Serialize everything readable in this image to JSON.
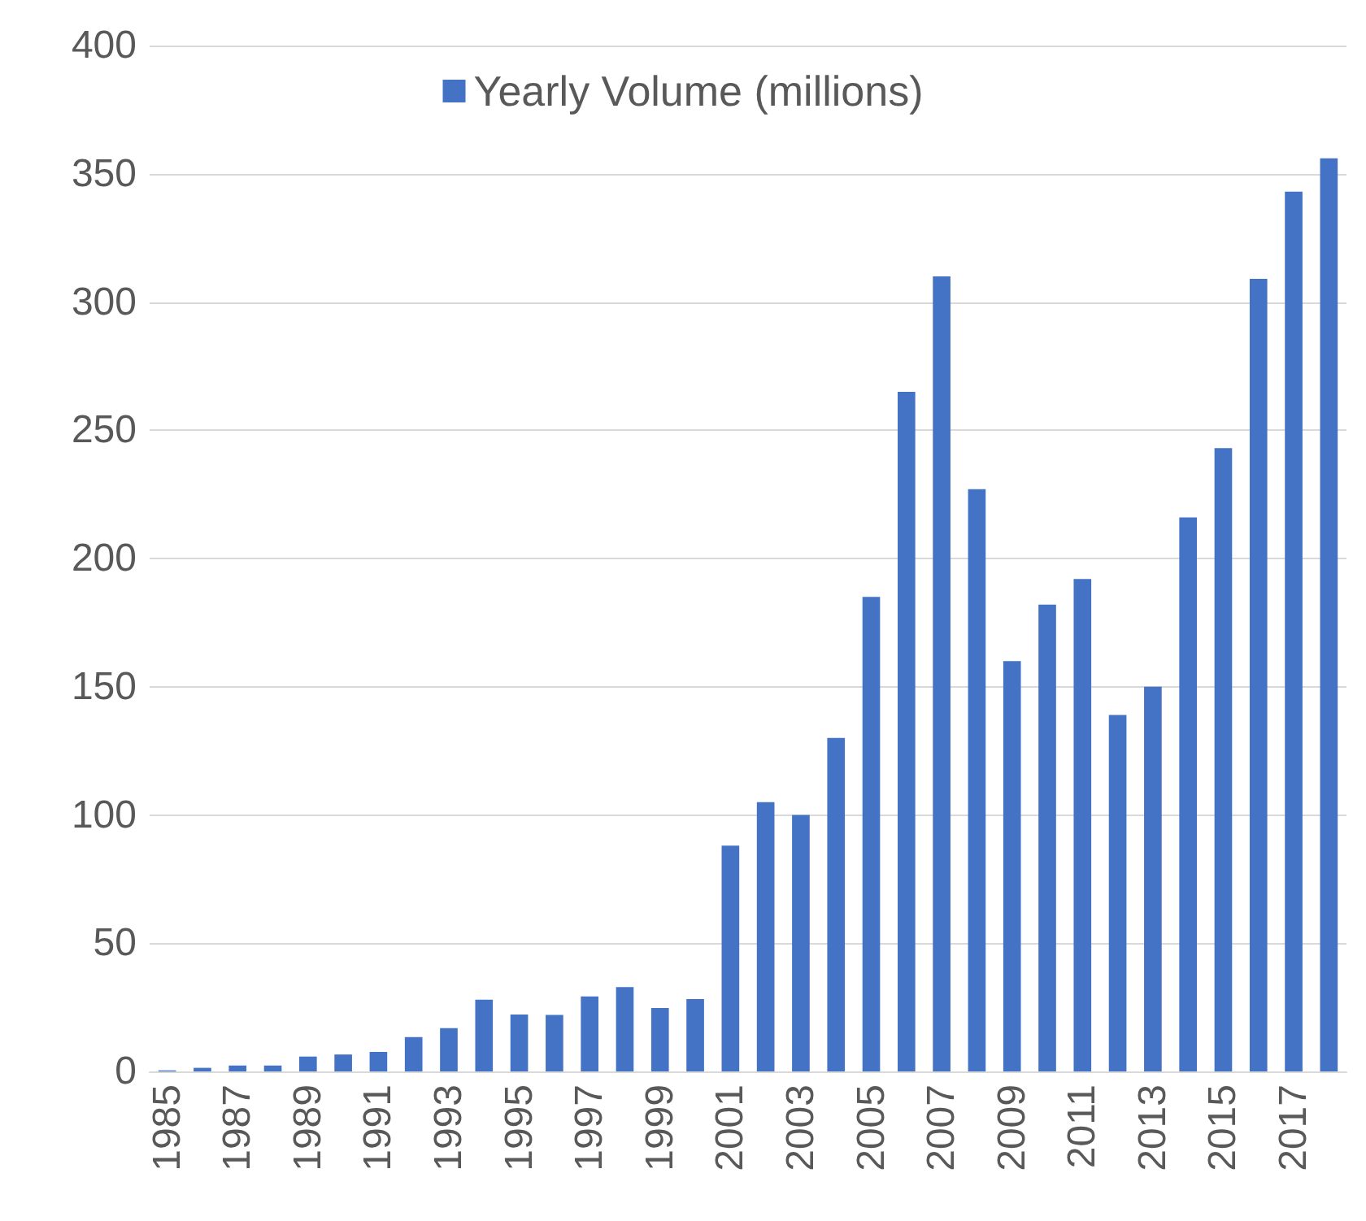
{
  "chart_data": {
    "type": "bar",
    "categories": [
      "1985",
      null,
      "1987",
      null,
      "1989",
      null,
      "1991",
      null,
      "1993",
      null,
      "1995",
      null,
      "1997",
      null,
      "1999",
      null,
      "2001",
      null,
      "2003",
      null,
      "2005",
      null,
      "2007",
      null,
      "2009",
      null,
      "2011",
      null,
      "2013",
      null,
      "2015",
      null,
      "2017",
      null
    ],
    "series": [
      {
        "name": "Yearly Volume (millions)",
        "color": "#4472c4",
        "values": [
          0.4,
          1.4,
          2.3,
          2.3,
          5.8,
          6.6,
          7.6,
          13.4,
          16.9,
          28,
          22.2,
          22,
          29.2,
          32.9,
          24.7,
          28.2,
          88,
          105,
          100,
          130,
          185,
          265,
          310,
          227,
          160,
          182,
          192,
          139,
          150,
          216,
          243,
          309,
          343,
          356
        ]
      }
    ],
    "ylim": [
      0,
      400
    ],
    "yticks": [
      0,
      50,
      100,
      150,
      200,
      250,
      300,
      350,
      400
    ],
    "grid": "y",
    "legend": "top"
  }
}
